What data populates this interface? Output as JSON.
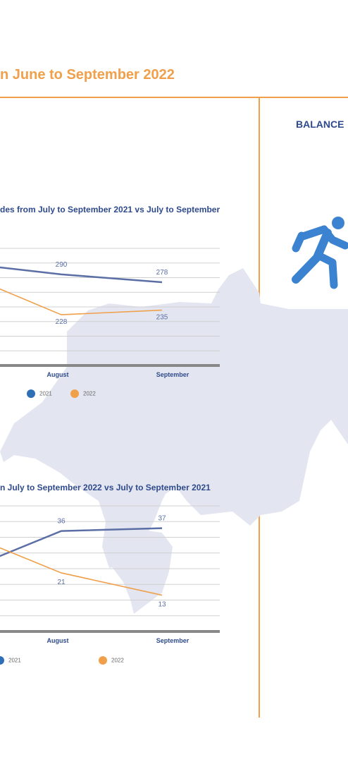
{
  "page_title": "n June to September 2022",
  "right_panel": {
    "heading": "BALANCE"
  },
  "chart_data": [
    {
      "type": "line",
      "title": "des from July to September 2021 vs July to September",
      "categories": [
        "",
        "August",
        "September"
      ],
      "series": [
        {
          "name": "2021",
          "color": "#5b6fa6",
          "values": [
            302,
            290,
            278
          ],
          "labels": [
            "",
            "290",
            "278"
          ]
        },
        {
          "name": "2022",
          "color": "#f0a04b",
          "values": [
            272,
            228,
            235
          ],
          "labels": [
            "",
            "228",
            "235"
          ]
        }
      ],
      "ylim": [
        150,
        330
      ],
      "grid": true,
      "legend": "bottom"
    },
    {
      "type": "line",
      "title": "n July to September 2022 vs July to September 2021",
      "categories": [
        "",
        "August",
        "September"
      ],
      "series": [
        {
          "name": "2021",
          "color": "#5b6fa6",
          "values": [
            26,
            36,
            37
          ],
          "labels": [
            "",
            "36",
            "37"
          ]
        },
        {
          "name": "2022",
          "color": "#f0a04b",
          "values": [
            31,
            21,
            13
          ],
          "labels": [
            "",
            "21",
            "13"
          ]
        }
      ],
      "ylim": [
        0,
        45
      ],
      "grid": true,
      "legend": "bottom"
    }
  ],
  "colors": {
    "accent": "#f0a04b",
    "primary": "#2e4a8c",
    "line_2021": "#5b6fa6",
    "legend_2021": "#2e6fb5",
    "line_2022": "#f0a04b",
    "map": "#e3e6f0",
    "icon": "#3b82d0"
  }
}
